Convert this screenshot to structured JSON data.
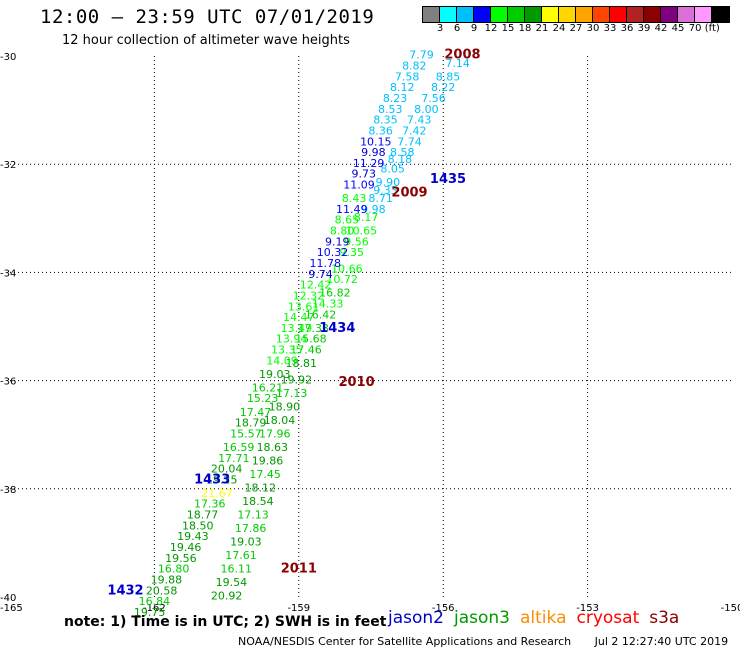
{
  "title": "12:00 – 23:59 UTC 07/01/2019",
  "subtitle": "12 hour collection of altimeter wave heights",
  "colorbar": {
    "colors": [
      "#808080",
      "#00ffff",
      "#00bfff",
      "#0000ff",
      "#00ff00",
      "#00cc00",
      "#009900",
      "#ffff00",
      "#ffd700",
      "#ffa500",
      "#ff4500",
      "#ff0000",
      "#b22222",
      "#8b0000",
      "#800080",
      "#da70d6",
      "#ff99ff",
      "#000000"
    ],
    "labels": [
      "3",
      "6",
      "9",
      "12",
      "15",
      "18",
      "21",
      "24",
      "27",
      "30",
      "33",
      "36",
      "39",
      "42",
      "45",
      "70 (ft)"
    ]
  },
  "note": "note: 1) Time is in UTC; 2) SWH is in feet",
  "satellites": [
    {
      "name": "jason2",
      "color": "#0000cc"
    },
    {
      "name": "jason3",
      "color": "#009900"
    },
    {
      "name": "altika",
      "color": "#ff8c00"
    },
    {
      "name": "cryosat",
      "color": "#ff0000"
    },
    {
      "name": "s3a",
      "color": "#8b0000"
    }
  ],
  "footer": {
    "source": "NOAA/NESDIS Center for Satellite Applications and Research",
    "timestamp": "Jul  2 12:27:40 UTC 2019"
  },
  "chart_data": {
    "type": "scatter",
    "xlim": [
      -165,
      -150
    ],
    "ylim": [
      -40,
      -30
    ],
    "xticks": [
      "-165",
      "-162",
      "-159",
      "-156",
      "-153",
      "-150"
    ],
    "yticks": [
      "-30",
      "-32",
      "-34",
      "-36",
      "-38",
      "-40"
    ],
    "grid": true,
    "time_labels": [
      {
        "text": "2008",
        "x": -155.6,
        "y": -30.05,
        "color": "#8b0000"
      },
      {
        "text": "1435",
        "x": -155.9,
        "y": -32.35,
        "color": "#0000cc"
      },
      {
        "text": "2009",
        "x": -156.7,
        "y": -32.6,
        "color": "#8b0000"
      },
      {
        "text": "1434",
        "x": -158.2,
        "y": -35.1,
        "color": "#0000cc"
      },
      {
        "text": "2010",
        "x": -157.8,
        "y": -36.1,
        "color": "#8b0000"
      },
      {
        "text": "1433",
        "x": -160.8,
        "y": -37.9,
        "color": "#0000cc"
      },
      {
        "text": "2011",
        "x": -159.0,
        "y": -39.55,
        "color": "#8b0000"
      },
      {
        "text": "1432",
        "x": -162.6,
        "y": -39.95,
        "color": "#0000cc"
      }
    ],
    "series": [
      {
        "points": [
          {
            "x": -155.7,
            "y": -30.2,
            "v": "7.14",
            "c": "#00bfff"
          },
          {
            "x": -155.9,
            "y": -30.45,
            "v": "8.85",
            "c": "#00bfff"
          },
          {
            "x": -156.0,
            "y": -30.65,
            "v": "8.22",
            "c": "#00bfff"
          },
          {
            "x": -156.2,
            "y": -30.85,
            "v": "7.56",
            "c": "#00bfff"
          },
          {
            "x": -156.35,
            "y": -31.05,
            "v": "8.00",
            "c": "#00bfff"
          },
          {
            "x": -156.5,
            "y": -31.25,
            "v": "7.43",
            "c": "#00bfff"
          },
          {
            "x": -156.6,
            "y": -31.45,
            "v": "7.42",
            "c": "#00bfff"
          },
          {
            "x": -156.7,
            "y": -31.65,
            "v": "7.74",
            "c": "#00bfff"
          },
          {
            "x": -156.85,
            "y": -31.85,
            "v": "8.58",
            "c": "#00bfff"
          },
          {
            "x": -156.9,
            "y": -31.98,
            "v": "8.18",
            "c": "#00bfff"
          },
          {
            "x": -157.05,
            "y": -32.15,
            "v": "8.05",
            "c": "#00bfff"
          },
          {
            "x": -157.15,
            "y": -32.4,
            "v": "9.90",
            "c": "#00bfff"
          },
          {
            "x": -157.2,
            "y": -32.55,
            "v": "9.33",
            "c": "#00bfff"
          },
          {
            "x": -157.3,
            "y": -32.7,
            "v": "8.71",
            "c": "#00bfff"
          },
          {
            "x": -157.45,
            "y": -32.9,
            "v": "9.98",
            "c": "#00bfff"
          },
          {
            "x": -157.6,
            "y": -33.05,
            "v": "8.17",
            "c": "#00ff00"
          },
          {
            "x": -157.7,
            "y": -33.3,
            "v": "10.65",
            "c": "#00ff00"
          },
          {
            "x": -157.8,
            "y": -33.5,
            "v": "9.56",
            "c": "#00ff00"
          },
          {
            "x": -157.9,
            "y": -33.7,
            "v": "9.35",
            "c": "#00ff00"
          },
          {
            "x": -158.0,
            "y": -34.0,
            "v": "10.66",
            "c": "#00ff00"
          },
          {
            "x": -158.1,
            "y": -34.2,
            "v": "10.72",
            "c": "#00ff00"
          },
          {
            "x": -158.25,
            "y": -34.45,
            "v": "16.82",
            "c": "#00cc00"
          },
          {
            "x": -158.4,
            "y": -34.65,
            "v": "14.33",
            "c": "#00ff00"
          },
          {
            "x": -158.55,
            "y": -34.85,
            "v": "16.42",
            "c": "#00cc00"
          },
          {
            "x": -158.7,
            "y": -35.1,
            "v": "17.33",
            "c": "#00cc00"
          },
          {
            "x": -158.75,
            "y": -35.3,
            "v": "15.68",
            "c": "#00cc00"
          },
          {
            "x": -158.85,
            "y": -35.5,
            "v": "17.46",
            "c": "#00cc00"
          },
          {
            "x": -158.95,
            "y": -35.75,
            "v": "18.81",
            "c": "#009900"
          },
          {
            "x": -159.05,
            "y": -36.05,
            "v": "19.92",
            "c": "#009900"
          },
          {
            "x": -159.15,
            "y": -36.3,
            "v": "17.13",
            "c": "#00cc00"
          },
          {
            "x": -159.3,
            "y": -36.55,
            "v": "18.90",
            "c": "#009900"
          },
          {
            "x": -159.4,
            "y": -36.8,
            "v": "18.04",
            "c": "#009900"
          },
          {
            "x": -159.5,
            "y": -37.05,
            "v": "17.96",
            "c": "#00cc00"
          },
          {
            "x": -159.55,
            "y": -37.3,
            "v": "18.63",
            "c": "#009900"
          },
          {
            "x": -159.65,
            "y": -37.55,
            "v": "19.86",
            "c": "#009900"
          },
          {
            "x": -159.7,
            "y": -37.8,
            "v": "17.45",
            "c": "#00cc00"
          },
          {
            "x": -159.8,
            "y": -38.05,
            "v": "18.12",
            "c": "#009900"
          },
          {
            "x": -159.85,
            "y": -38.3,
            "v": "18.54",
            "c": "#009900"
          },
          {
            "x": -159.95,
            "y": -38.55,
            "v": "17.13",
            "c": "#00cc00"
          },
          {
            "x": -160.0,
            "y": -38.8,
            "v": "17.86",
            "c": "#00cc00"
          },
          {
            "x": -160.1,
            "y": -39.05,
            "v": "19.03",
            "c": "#009900"
          },
          {
            "x": -160.2,
            "y": -39.3,
            "v": "17.61",
            "c": "#00cc00"
          },
          {
            "x": -160.3,
            "y": -39.55,
            "v": "16.11",
            "c": "#00cc00"
          },
          {
            "x": -160.4,
            "y": -39.8,
            "v": "19.54",
            "c": "#009900"
          },
          {
            "x": -160.5,
            "y": -40.05,
            "v": "20.92",
            "c": "#009900"
          }
        ]
      },
      {
        "points": [
          {
            "x": -156.45,
            "y": -30.05,
            "v": "7.79",
            "c": "#00bfff"
          },
          {
            "x": -156.6,
            "y": -30.25,
            "v": "8.82",
            "c": "#00bfff"
          },
          {
            "x": -156.75,
            "y": -30.45,
            "v": "7.58",
            "c": "#00bfff"
          },
          {
            "x": -156.85,
            "y": -30.65,
            "v": "8.12",
            "c": "#00bfff"
          },
          {
            "x": -157.0,
            "y": -30.85,
            "v": "8.23",
            "c": "#00bfff"
          },
          {
            "x": -157.1,
            "y": -31.05,
            "v": "8.53",
            "c": "#00bfff"
          },
          {
            "x": -157.2,
            "y": -31.25,
            "v": "8.35",
            "c": "#00bfff"
          },
          {
            "x": -157.3,
            "y": -31.45,
            "v": "8.36",
            "c": "#00bfff"
          },
          {
            "x": -157.4,
            "y": -31.65,
            "v": "10.15",
            "c": "#0000ff"
          },
          {
            "x": -157.45,
            "y": -31.85,
            "v": "9.98",
            "c": "#0000cc"
          },
          {
            "x": -157.55,
            "y": -32.05,
            "v": "11.29",
            "c": "#0000ff"
          },
          {
            "x": -157.65,
            "y": -32.25,
            "v": "9.73",
            "c": "#0000cc"
          },
          {
            "x": -157.75,
            "y": -32.45,
            "v": "11.09",
            "c": "#0000ff"
          },
          {
            "x": -157.85,
            "y": -32.7,
            "v": "8.43",
            "c": "#00ff00"
          },
          {
            "x": -157.9,
            "y": -32.9,
            "v": "11.49",
            "c": "#0000ff"
          },
          {
            "x": -158.0,
            "y": -33.1,
            "v": "8.65",
            "c": "#00ff00"
          },
          {
            "x": -158.1,
            "y": -33.3,
            "v": "8.80",
            "c": "#00ff00"
          },
          {
            "x": -158.2,
            "y": -33.5,
            "v": "9.19",
            "c": "#0000cc"
          },
          {
            "x": -158.3,
            "y": -33.7,
            "v": "10.32",
            "c": "#0000ff"
          },
          {
            "x": -158.45,
            "y": -33.9,
            "v": "11.78",
            "c": "#0000ff"
          },
          {
            "x": -158.55,
            "y": -34.1,
            "v": "9.74",
            "c": "#0000cc"
          },
          {
            "x": -158.65,
            "y": -34.3,
            "v": "12.42",
            "c": "#00ff00"
          },
          {
            "x": -158.8,
            "y": -34.5,
            "v": "12.32",
            "c": "#00ff00"
          },
          {
            "x": -158.9,
            "y": -34.7,
            "v": "13.61",
            "c": "#00ff00"
          },
          {
            "x": -159.0,
            "y": -34.9,
            "v": "14.47",
            "c": "#00ff00"
          },
          {
            "x": -159.05,
            "y": -35.1,
            "v": "13.49",
            "c": "#00ff00"
          },
          {
            "x": -159.15,
            "y": -35.3,
            "v": "13.94",
            "c": "#00ff00"
          },
          {
            "x": -159.25,
            "y": -35.5,
            "v": "13.35",
            "c": "#00ff00"
          },
          {
            "x": -159.35,
            "y": -35.7,
            "v": "14.09",
            "c": "#00ff00"
          },
          {
            "x": -159.5,
            "y": -35.95,
            "v": "19.03",
            "c": "#009900"
          },
          {
            "x": -159.65,
            "y": -36.2,
            "v": "16.21",
            "c": "#00cc00"
          },
          {
            "x": -159.75,
            "y": -36.4,
            "v": "15.23",
            "c": "#00cc00"
          },
          {
            "x": -159.9,
            "y": -36.65,
            "v": "17.47",
            "c": "#00cc00"
          },
          {
            "x": -160.0,
            "y": -36.85,
            "v": "18.79",
            "c": "#009900"
          },
          {
            "x": -160.1,
            "y": -37.05,
            "v": "15.57",
            "c": "#00cc00"
          },
          {
            "x": -160.25,
            "y": -37.3,
            "v": "16.59",
            "c": "#00cc00"
          },
          {
            "x": -160.35,
            "y": -37.5,
            "v": "17.71",
            "c": "#00cc00"
          },
          {
            "x": -160.5,
            "y": -37.7,
            "v": "20.04",
            "c": "#009900"
          },
          {
            "x": -160.6,
            "y": -37.9,
            "v": "19.25",
            "c": "#009900"
          },
          {
            "x": -160.7,
            "y": -38.15,
            "v": "21.67",
            "c": "#ffff00"
          },
          {
            "x": -160.85,
            "y": -38.35,
            "v": "17.36",
            "c": "#00cc00"
          },
          {
            "x": -161.0,
            "y": -38.55,
            "v": "18.77",
            "c": "#009900"
          },
          {
            "x": -161.1,
            "y": -38.75,
            "v": "18.50",
            "c": "#009900"
          },
          {
            "x": -161.2,
            "y": -38.95,
            "v": "19.43",
            "c": "#009900"
          },
          {
            "x": -161.35,
            "y": -39.15,
            "v": "19.46",
            "c": "#009900"
          },
          {
            "x": -161.45,
            "y": -39.35,
            "v": "19.56",
            "c": "#009900"
          },
          {
            "x": -161.6,
            "y": -39.55,
            "v": "16.80",
            "c": "#00cc00"
          },
          {
            "x": -161.75,
            "y": -39.75,
            "v": "19.88",
            "c": "#009900"
          },
          {
            "x": -161.85,
            "y": -39.95,
            "v": "20.58",
            "c": "#009900"
          },
          {
            "x": -162.0,
            "y": -40.15,
            "v": "16.84",
            "c": "#00cc00"
          },
          {
            "x": -162.1,
            "y": -40.35,
            "v": "19.75",
            "c": "#009900"
          }
        ]
      }
    ]
  }
}
